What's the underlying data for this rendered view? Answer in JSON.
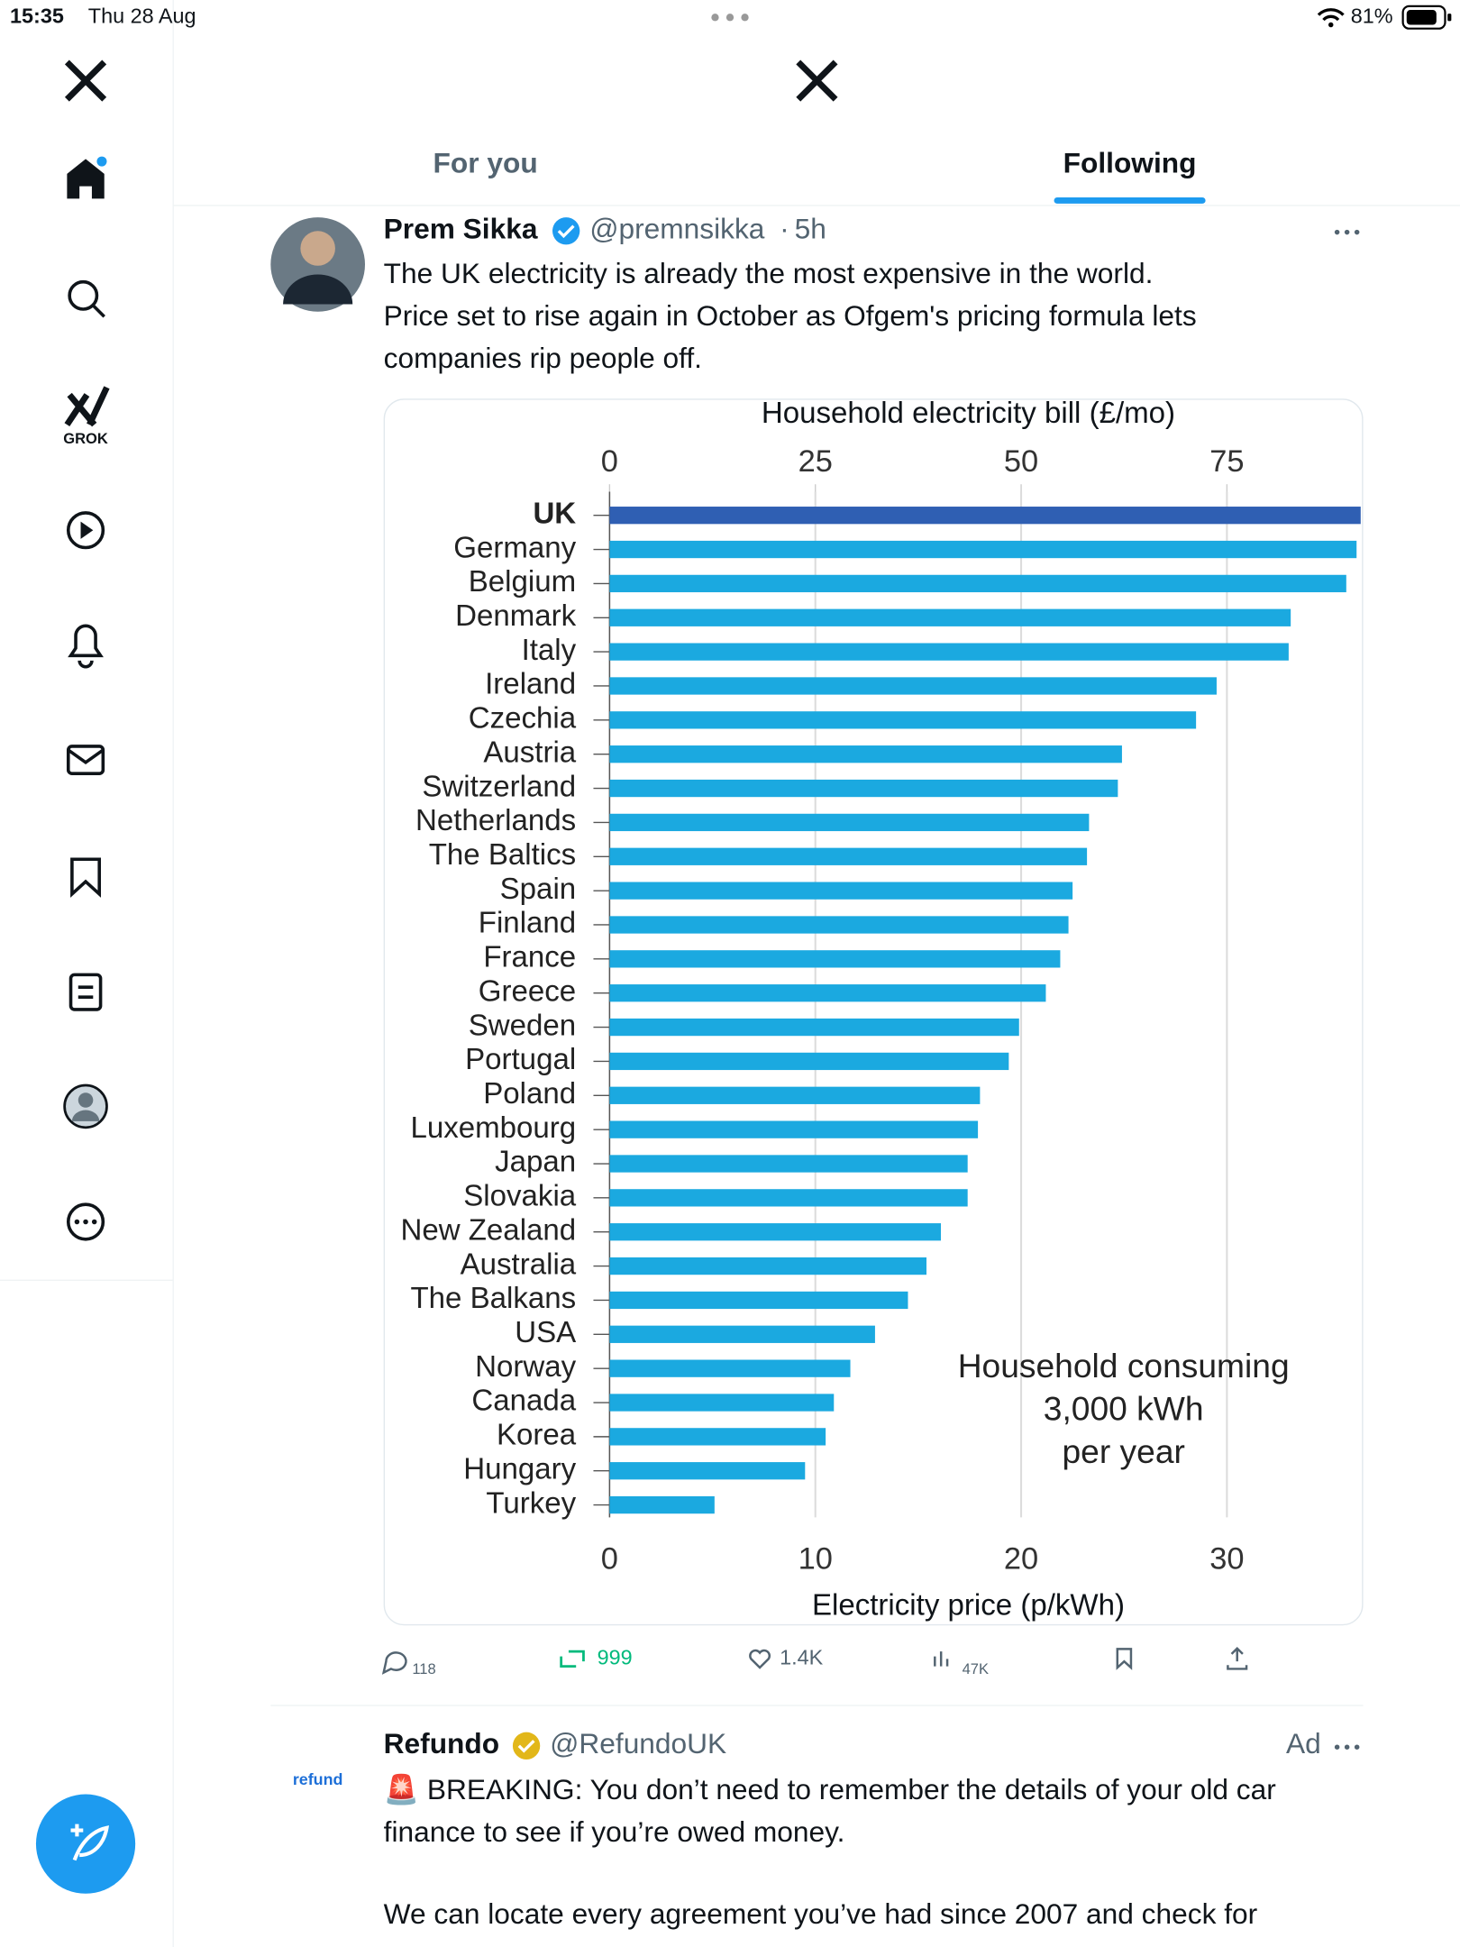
{
  "status_bar": {
    "time": "15:35",
    "date": "Thu 28 Aug",
    "battery": "81%"
  },
  "sidebar": {
    "grok": "GROK"
  },
  "tabs": [
    "For you",
    "Following"
  ],
  "tweet": {
    "author": "Prem Sikka",
    "handle": "@premnsikka",
    "separator": "·",
    "time": "5h",
    "text": [
      "The UK electricity is already the most expensive in the world.",
      "Price set to rise again in October as Ofgem's pricing formula lets",
      "companies rip people off."
    ],
    "chart": {
      "type": "bar",
      "orientation": "horizontal",
      "title": "Household electricity bill (£/mo)",
      "x_label": "Electricity price (p/kWh)",
      "annotation": [
        "Household consuming",
        "3,000 kWh",
        "per year"
      ],
      "categories": [
        "UK",
        "Germany",
        "Belgium",
        "Denmark",
        "Italy",
        "Ireland",
        "Czechia",
        "Austria",
        "Switzerland",
        "Netherlands",
        "The Baltics",
        "Spain",
        "Finland",
        "France",
        "Greece",
        "Sweden",
        "Portugal",
        "Poland",
        "Luxembourg",
        "Japan",
        "Slovakia",
        "New Zealand",
        "Australia",
        "The Balkans",
        "USA",
        "Norway",
        "Canada",
        "Korea",
        "Hungary",
        "Turkey"
      ],
      "values": [
        36.5,
        36.3,
        35.8,
        33.1,
        33.0,
        29.5,
        28.5,
        24.9,
        24.7,
        23.3,
        23.2,
        22.5,
        22.3,
        21.9,
        21.2,
        19.9,
        19.4,
        18.0,
        17.9,
        17.4,
        17.4,
        16.1,
        15.4,
        14.5,
        12.9,
        11.7,
        10.9,
        10.5,
        9.5,
        5.1
      ],
      "colors": [
        "#2f5fb3",
        "#1ba9e0",
        "#1ba9e0",
        "#1ba9e0",
        "#1ba9e0",
        "#1ba9e0",
        "#1ba9e0",
        "#1ba9e0",
        "#1ba9e0",
        "#1ba9e0",
        "#1ba9e0",
        "#1ba9e0",
        "#1ba9e0",
        "#1ba9e0",
        "#1ba9e0",
        "#1ba9e0",
        "#1ba9e0",
        "#1ba9e0",
        "#1ba9e0",
        "#1ba9e0",
        "#1ba9e0",
        "#1ba9e0",
        "#1ba9e0",
        "#1ba9e0",
        "#1ba9e0",
        "#1ba9e0",
        "#1ba9e0",
        "#1ba9e0",
        "#1ba9e0",
        "#1ba9e0"
      ],
      "xlim": [
        0,
        36.5
      ],
      "xticks": [
        0,
        10,
        20,
        30
      ],
      "x2lim": [
        0,
        91.25
      ],
      "x2ticks": [
        0,
        25,
        50,
        75
      ],
      "grid": true
    },
    "actions": {
      "replies": "118",
      "reposts": "999",
      "likes": "1.4K",
      "views": "47K"
    }
  },
  "ad": {
    "logo": "refund",
    "author": "Refundo",
    "handle": "@RefundoUK",
    "label": "Ad",
    "text": [
      "🚨 BREAKING: You don’t need to remember the details of your old car",
      "finance to see if you’re owed money.",
      "We can locate every agreement you’ve had since 2007 and check for"
    ]
  }
}
